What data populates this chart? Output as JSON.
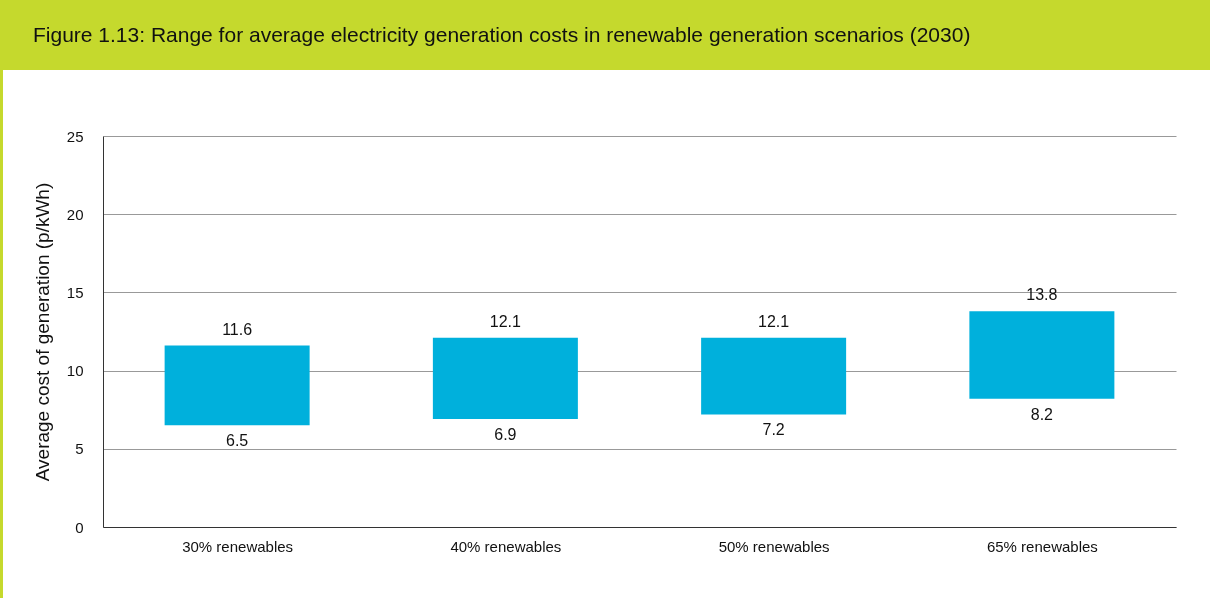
{
  "chart_data": {
    "type": "bar",
    "title": "Figure 1.13: Range for average electricity generation costs in renewable generation scenarios (2030)",
    "ylabel": "Average cost of generation (p/kWh)",
    "categories": [
      "30% renewables",
      "40% renewables",
      "50% renewables",
      "65% renewables"
    ],
    "base": [
      6.5,
      6.9,
      7.2,
      8.2
    ],
    "values": [
      5.1,
      5.2,
      4.9,
      5.6
    ],
    "color": "#00b0dc",
    "ylim": [
      0,
      25
    ],
    "yticks": [
      0,
      5,
      10,
      15,
      20,
      25
    ],
    "grid": "y",
    "annotations": [
      {
        "text": "11.6",
        "x": "30% renewables",
        "y": 11.6
      },
      {
        "text": "6.5",
        "x": "30% renewables",
        "y": 6.5
      },
      {
        "text": "12.1",
        "x": "40% renewables",
        "y": 12.1
      },
      {
        "text": "6.9",
        "x": "40% renewables",
        "y": 6.9
      },
      {
        "text": "12.1",
        "x": "50% renewables",
        "y": 12.1
      },
      {
        "text": "7.2",
        "x": "50% renewables",
        "y": 7.2
      },
      {
        "text": "13.8",
        "x": "65% renewables",
        "y": 13.8
      },
      {
        "text": "8.2",
        "x": "65% renewables",
        "y": 8.2
      }
    ]
  }
}
